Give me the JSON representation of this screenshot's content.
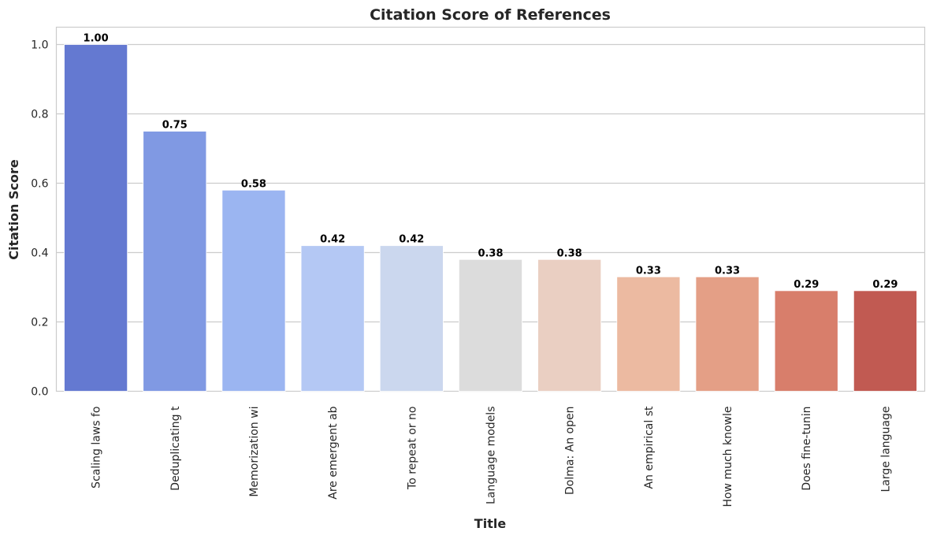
{
  "chart_data": {
    "type": "bar",
    "title": "Citation Score of References",
    "xlabel": "Title",
    "ylabel": "Citation Score",
    "categories": [
      "Scaling laws fo",
      "Deduplicating t",
      "Memorization wi",
      "Are emergent ab",
      "To repeat or no",
      "Language models",
      "Dolma: An open",
      "An empirical st",
      "How much knowle",
      "Does fine-tunin",
      "Large language"
    ],
    "values": [
      1.0,
      0.75,
      0.58,
      0.42,
      0.42,
      0.38,
      0.38,
      0.33,
      0.33,
      0.29,
      0.29
    ],
    "value_labels": [
      "1.00",
      "0.75",
      "0.58",
      "0.42",
      "0.42",
      "0.38",
      "0.38",
      "0.33",
      "0.33",
      "0.29",
      "0.29"
    ],
    "colors": [
      "#6479d1",
      "#8099e3",
      "#9bb5f1",
      "#b4c8f4",
      "#cbd7ee",
      "#dcdcdc",
      "#eacfc2",
      "#ecbaa1",
      "#e49f86",
      "#d87e6b",
      "#c15a52"
    ],
    "ylim": [
      0,
      1.05
    ],
    "yticks": [
      0.0,
      0.2,
      0.4,
      0.6,
      0.8,
      1.0
    ],
    "ytick_labels": [
      "0.0",
      "0.2",
      "0.4",
      "0.6",
      "0.8",
      "1.0"
    ],
    "grid": true,
    "grid_axis": "y"
  }
}
